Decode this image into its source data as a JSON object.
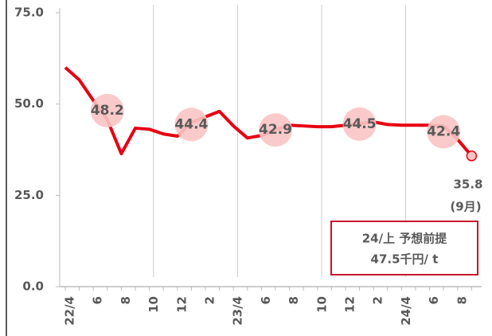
{
  "chart_data": {
    "type": "line",
    "categories": [
      "22/4",
      null,
      "6",
      null,
      "8",
      null,
      "10",
      null,
      "12",
      null,
      "2",
      null,
      "23/4",
      null,
      "6",
      null,
      "8",
      null,
      "10",
      null,
      "12",
      null,
      "2",
      null,
      "24/4",
      null,
      "6",
      null,
      "8",
      null
    ],
    "series": [
      {
        "color": "#e60012",
        "values": [
          60,
          56.6,
          51,
          45.7,
          36.4,
          43.4,
          43.1,
          41.8,
          41.2,
          45,
          46.5,
          48,
          44,
          40.7,
          41.4,
          42.9,
          44.2,
          44,
          43.8,
          43.8,
          44.2,
          44.7,
          45.1,
          44.4,
          44.2,
          44.2,
          44.2,
          44,
          40.3,
          35.8
        ]
      }
    ],
    "averages": [
      null,
      null,
      null,
      48.2,
      null,
      null,
      null,
      null,
      null,
      44.4,
      null,
      null,
      null,
      null,
      null,
      42.9,
      null,
      null,
      null,
      null,
      null,
      44.5,
      null,
      null,
      null,
      null,
      null,
      42.4,
      null,
      null
    ],
    "averages_color": "#f9c4c4",
    "last_label": [
      "35.8",
      "(9月)"
    ],
    "box_text": [
      "24/上 予想前提",
      "47.5千円/ t"
    ],
    "ylim": [
      0,
      75
    ],
    "yticks": [
      {
        "value": 0,
        "label": "0.0"
      },
      {
        "value": 25,
        "label": "25.0"
      },
      {
        "value": 50,
        "label": "50.0"
      },
      {
        "value": 75,
        "label": "75.0"
      }
    ]
  }
}
